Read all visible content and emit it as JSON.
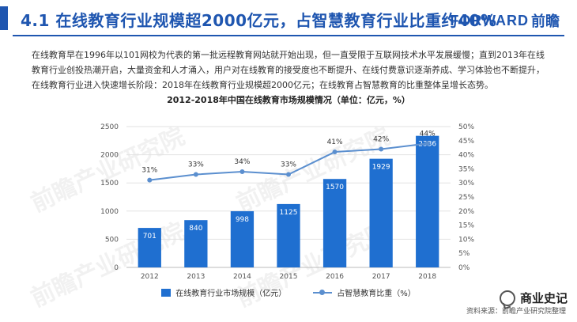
{
  "header": {
    "title": "4.1  在线教育行业规模超2000亿元，占智慧教育行业比重约40%",
    "logo_main": "FORWARD",
    "logo_cn": "前瞻"
  },
  "intro_text": "在线教育早在1996年以101网校为代表的第一批远程教育网站就开始出现，但一直受限于互联网技术水平发展缓慢；直到2013年在线教育行业创投热潮开启，大量资金和人才涌入，用户对在线教育的接受度也不断提升、在线付费意识逐渐养成、学习体验也不断提升，在线教育行业进入快速增长阶段：2018年在线教育行业规模超2000亿元；在线教育占智慧教育的比重整体呈增长态势。",
  "watermark_text": "前瞻产业研究院",
  "chart_data": {
    "type": "bar",
    "title": "2012-2018年中国在线教育市场规模情况（单位：亿元，%）",
    "categories": [
      "2012",
      "2013",
      "2014",
      "2015",
      "2016",
      "2017",
      "2018"
    ],
    "series": [
      {
        "name": "在线教育行业市场规模（亿元）",
        "type": "bar",
        "values": [
          701,
          840,
          998,
          1125,
          1570,
          1929,
          2336
        ],
        "color": "#1f6fd0"
      },
      {
        "name": "占智慧教育比重（%）",
        "type": "line",
        "values": [
          31,
          33,
          34,
          33,
          41,
          42,
          44
        ],
        "color": "#5b8fcf"
      }
    ],
    "y_left": {
      "min": 0,
      "max": 2500,
      "ticks": [
        0,
        500,
        1000,
        1500,
        2000,
        2500
      ]
    },
    "y_right": {
      "min": 0,
      "max": 50,
      "ticks": [
        0,
        5,
        10,
        15,
        20,
        25,
        30,
        35,
        40,
        45,
        50
      ],
      "suffix": "%"
    },
    "bar_labels": [
      "701",
      "840",
      "998",
      "1125",
      "1570",
      "1929",
      "2336"
    ],
    "line_labels": [
      "31%",
      "33%",
      "34%",
      "33%",
      "41%",
      "42%",
      "44%"
    ],
    "grid": true,
    "legend_position": "bottom"
  },
  "footer": {
    "wechat_label": "商业史记",
    "source": "资料来源：前瞻产业研究院整理"
  }
}
